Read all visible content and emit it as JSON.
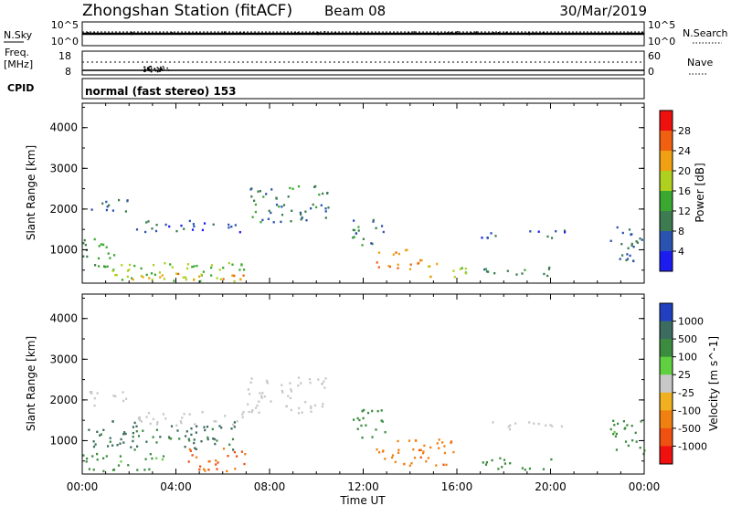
{
  "header": {
    "station": "Zhongshan Station (fitACF)",
    "beam": "Beam 08",
    "date": "30/Mar/2019"
  },
  "cpid": {
    "label": "CPID",
    "mode": "normal (fast stereo) 153"
  },
  "strip_panels": {
    "nsky": {
      "left_label": "N.Sky",
      "right_label": "N.Search",
      "left_ticks": [
        "10^5",
        "10^0"
      ],
      "right_ticks": [
        "10^5",
        "10^0"
      ]
    },
    "freq": {
      "left_label_1": "Freq.",
      "left_label_2": "[MHz]",
      "right_label": "Nave",
      "left_ticks": [
        "18",
        "8"
      ],
      "right_ticks": [
        "60",
        "0"
      ]
    }
  },
  "x_axis": {
    "label": "Time UT",
    "ticks": [
      "00:00",
      "04:00",
      "08:00",
      "12:00",
      "16:00",
      "20:00",
      "00:00"
    ],
    "range_hours": [
      0,
      24
    ]
  },
  "chart_data": [
    {
      "type": "heatmap",
      "name": "power",
      "ylabel": "Slant Range [km]",
      "yticks": [
        "1000",
        "2000",
        "3000",
        "4000"
      ],
      "ylim": [
        180,
        4600
      ],
      "colorbar_label": "Power [dB]",
      "colorbar_ticks": [
        "4",
        "8",
        "12",
        "16",
        "20",
        "24",
        "28"
      ],
      "colorbar_colors": [
        "#1c1cf0",
        "#2a52b0",
        "#3c7c50",
        "#3aa830",
        "#b0d020",
        "#f0a010",
        "#f06010",
        "#f01010"
      ],
      "regions": [
        {
          "t0": 0.3,
          "t1": 2.0,
          "r0": 1850,
          "r1": 2250,
          "level": 8
        },
        {
          "t0": 2.0,
          "t1": 5.5,
          "r0": 1450,
          "r1": 1750,
          "level": 6
        },
        {
          "t0": 5.5,
          "t1": 7.0,
          "r0": 1400,
          "r1": 1650,
          "level": 6
        },
        {
          "t0": 7.0,
          "t1": 10.5,
          "r0": 1700,
          "r1": 2600,
          "level": 10
        },
        {
          "t0": 0.0,
          "t1": 1.5,
          "r0": 600,
          "r1": 1300,
          "level": 12
        },
        {
          "t0": 0.0,
          "t1": 7.0,
          "r0": 250,
          "r1": 700,
          "level": 16
        },
        {
          "t0": 2.0,
          "t1": 7.0,
          "r0": 250,
          "r1": 450,
          "level": 22
        },
        {
          "t0": 11.5,
          "t1": 13.0,
          "r0": 1100,
          "r1": 1800,
          "level": 10
        },
        {
          "t0": 12.5,
          "t1": 14.5,
          "r0": 550,
          "r1": 1100,
          "level": 24
        },
        {
          "t0": 14.5,
          "t1": 16.5,
          "r0": 350,
          "r1": 700,
          "level": 18
        },
        {
          "t0": 17.0,
          "t1": 18.5,
          "r0": 1300,
          "r1": 1500,
          "level": 6
        },
        {
          "t0": 19.0,
          "t1": 21.0,
          "r0": 1300,
          "r1": 1500,
          "level": 6
        },
        {
          "t0": 17.0,
          "t1": 20.0,
          "r0": 350,
          "r1": 600,
          "level": 10
        },
        {
          "t0": 22.5,
          "t1": 24.0,
          "r0": 700,
          "r1": 1600,
          "level": 8
        }
      ]
    },
    {
      "type": "heatmap",
      "name": "velocity",
      "ylabel": "Slant Range [km]",
      "yticks": [
        "1000",
        "2000",
        "3000",
        "4000"
      ],
      "ylim": [
        180,
        4600
      ],
      "colorbar_label": "Velocity [m s^-1]",
      "colorbar_ticks": [
        "1000",
        "500",
        "100",
        "25",
        "-25",
        "-100",
        "-500",
        "-1000"
      ],
      "colorbar_colors": [
        "#2040c0",
        "#3c6c60",
        "#3c8c40",
        "#60d040",
        "#c8c8c8",
        "#f0b020",
        "#f08010",
        "#f05010",
        "#f01010"
      ],
      "regions": [
        {
          "t0": 0.3,
          "t1": 2.0,
          "r0": 1850,
          "r1": 2250,
          "level": 0
        },
        {
          "t0": 2.0,
          "t1": 7.0,
          "r0": 1400,
          "r1": 1750,
          "level": 0
        },
        {
          "t0": 7.0,
          "t1": 10.5,
          "r0": 1700,
          "r1": 2600,
          "level": 0
        },
        {
          "t0": 0.0,
          "t1": 6.5,
          "r0": 800,
          "r1": 1500,
          "level": 600
        },
        {
          "t0": 0.0,
          "t1": 3.5,
          "r0": 250,
          "r1": 700,
          "level": 150
        },
        {
          "t0": 4.5,
          "t1": 7.0,
          "r0": 250,
          "r1": 850,
          "level": -600
        },
        {
          "t0": 11.5,
          "t1": 13.0,
          "r0": 1000,
          "r1": 1800,
          "level": 300
        },
        {
          "t0": 12.5,
          "t1": 16.0,
          "r0": 400,
          "r1": 1100,
          "level": -400
        },
        {
          "t0": 17.0,
          "t1": 18.5,
          "r0": 1300,
          "r1": 1500,
          "level": 0
        },
        {
          "t0": 19.0,
          "t1": 21.0,
          "r0": 1300,
          "r1": 1500,
          "level": 0
        },
        {
          "t0": 17.0,
          "t1": 20.0,
          "r0": 300,
          "r1": 600,
          "level": 150
        },
        {
          "t0": 22.5,
          "t1": 24.0,
          "r0": 700,
          "r1": 1600,
          "level": 150
        }
      ]
    }
  ]
}
